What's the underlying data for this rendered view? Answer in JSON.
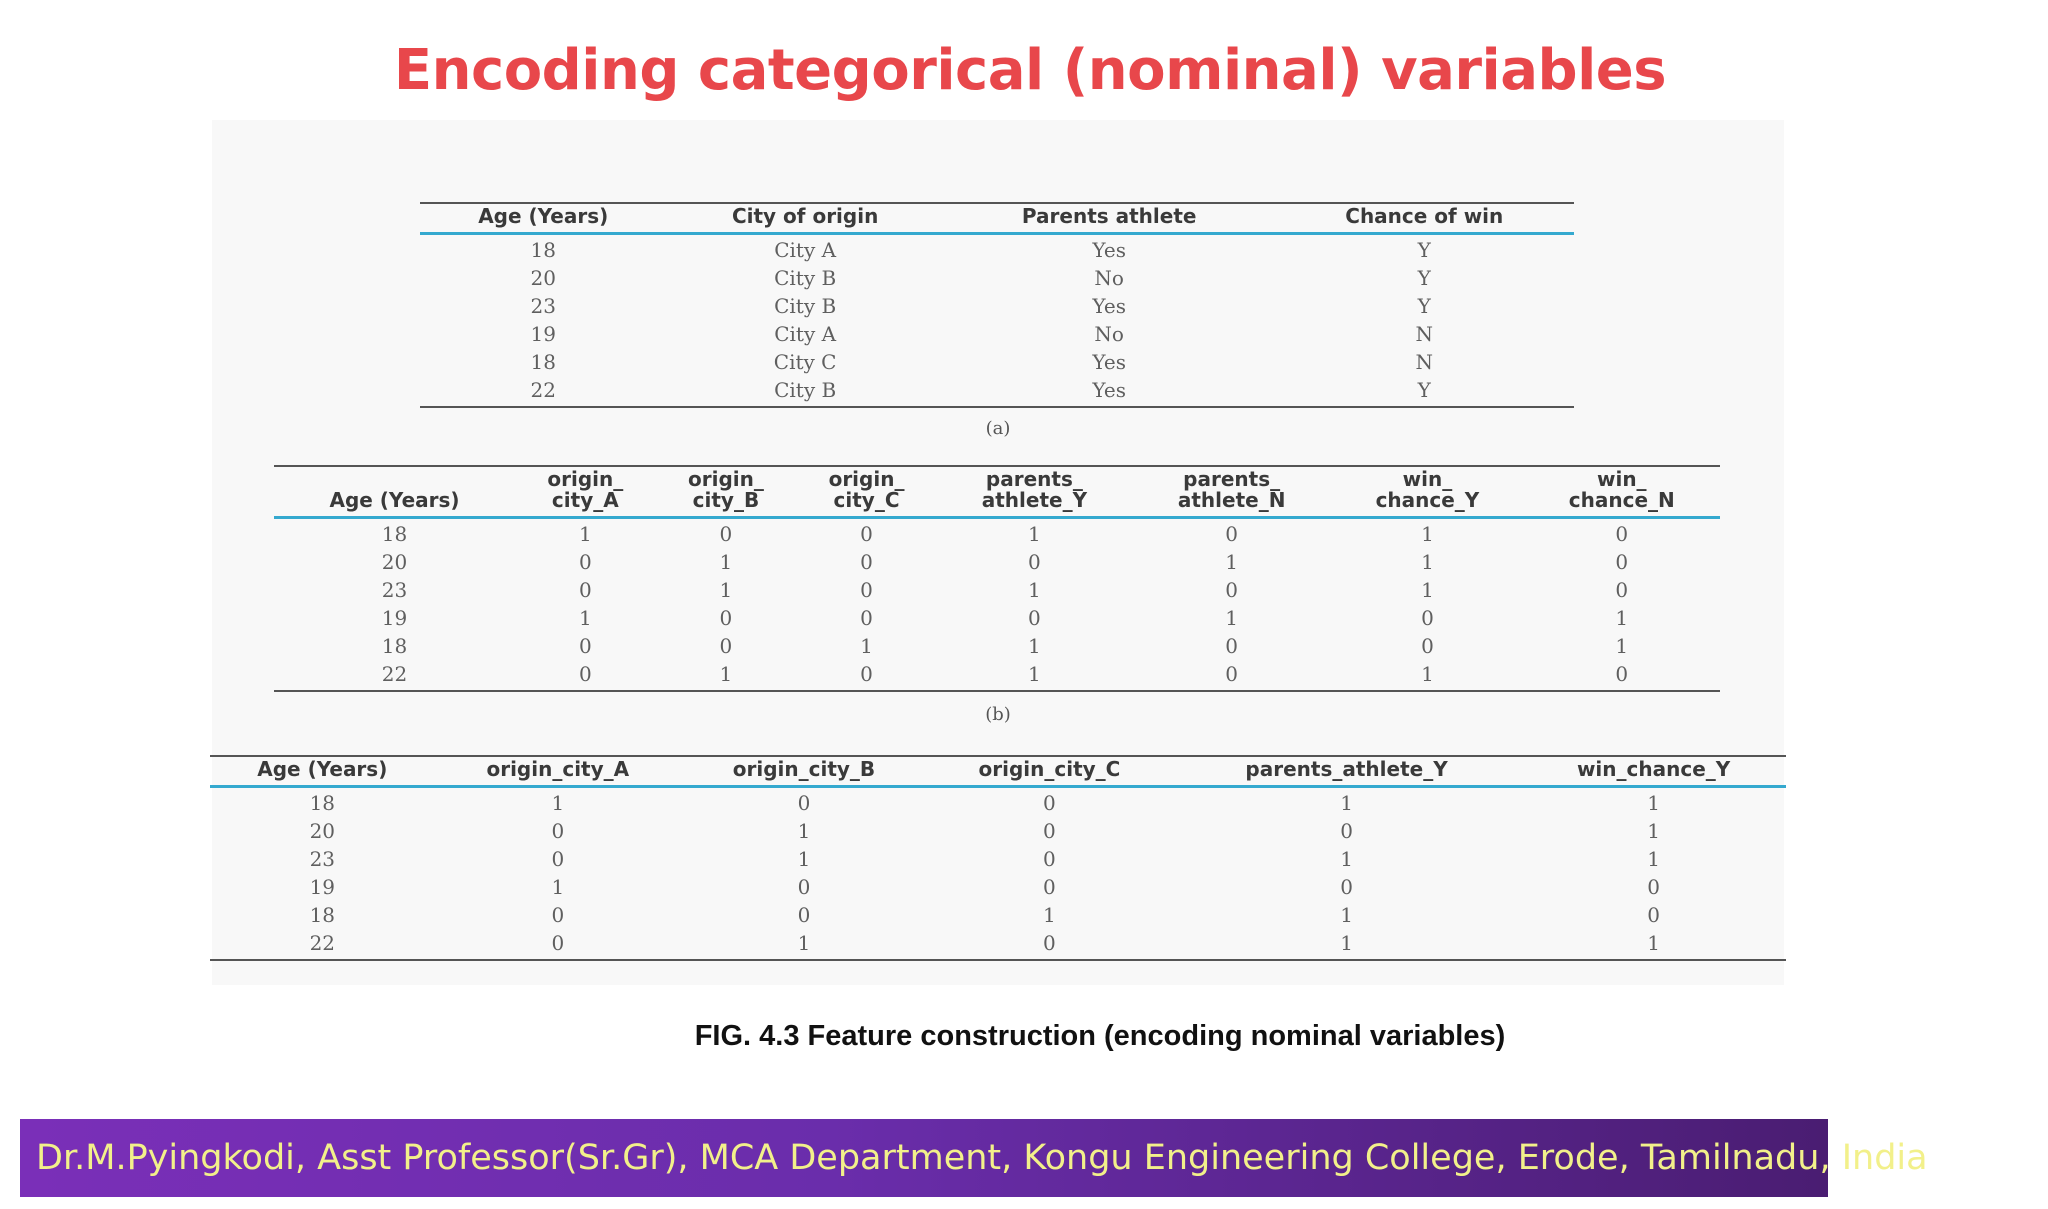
{
  "title": "Encoding categorical (nominal) variables",
  "table_a": {
    "label": "(a)",
    "headers": [
      "Age (Years)",
      "City of origin",
      "Parents athlete",
      "Chance of win"
    ],
    "rows": [
      [
        "18",
        "City A",
        "Yes",
        "Y"
      ],
      [
        "20",
        "City B",
        "No",
        "Y"
      ],
      [
        "23",
        "City B",
        "Yes",
        "Y"
      ],
      [
        "19",
        "City A",
        "No",
        "N"
      ],
      [
        "18",
        "City C",
        "Yes",
        "N"
      ],
      [
        "22",
        "City B",
        "Yes",
        "Y"
      ]
    ]
  },
  "table_b": {
    "label": "(b)",
    "headers": [
      [
        "Age (Years)"
      ],
      [
        "origin_",
        "city_A"
      ],
      [
        "origin_",
        "city_B"
      ],
      [
        "origin_",
        "city_C"
      ],
      [
        "parents_",
        "athlete_Y"
      ],
      [
        "parents_",
        "athlete_N"
      ],
      [
        "win_",
        "chance_Y"
      ],
      [
        "win_",
        "chance_N"
      ]
    ],
    "rows": [
      [
        "18",
        "1",
        "0",
        "0",
        "1",
        "0",
        "1",
        "0"
      ],
      [
        "20",
        "0",
        "1",
        "0",
        "0",
        "1",
        "1",
        "0"
      ],
      [
        "23",
        "0",
        "1",
        "0",
        "1",
        "0",
        "1",
        "0"
      ],
      [
        "19",
        "1",
        "0",
        "0",
        "0",
        "1",
        "0",
        "1"
      ],
      [
        "18",
        "0",
        "0",
        "1",
        "1",
        "0",
        "0",
        "1"
      ],
      [
        "22",
        "0",
        "1",
        "0",
        "1",
        "0",
        "1",
        "0"
      ]
    ]
  },
  "table_c": {
    "headers": [
      "Age (Years)",
      "origin_city_A",
      "origin_city_B",
      "origin_city_C",
      "parents_athlete_Y",
      "win_chance_Y"
    ],
    "rows": [
      [
        "18",
        "1",
        "0",
        "0",
        "1",
        "1"
      ],
      [
        "20",
        "0",
        "1",
        "0",
        "0",
        "1"
      ],
      [
        "23",
        "0",
        "1",
        "0",
        "1",
        "1"
      ],
      [
        "19",
        "1",
        "0",
        "0",
        "0",
        "0"
      ],
      [
        "18",
        "0",
        "0",
        "1",
        "1",
        "0"
      ],
      [
        "22",
        "0",
        "1",
        "0",
        "1",
        "1"
      ]
    ]
  },
  "figure_caption": "FIG. 4.3 Feature construction (encoding nominal variables)",
  "footer": "Dr.M.Pyingkodi, Asst Professor(Sr.Gr), MCA Department, Kongu Engineering College, Erode, Tamilnadu, India"
}
